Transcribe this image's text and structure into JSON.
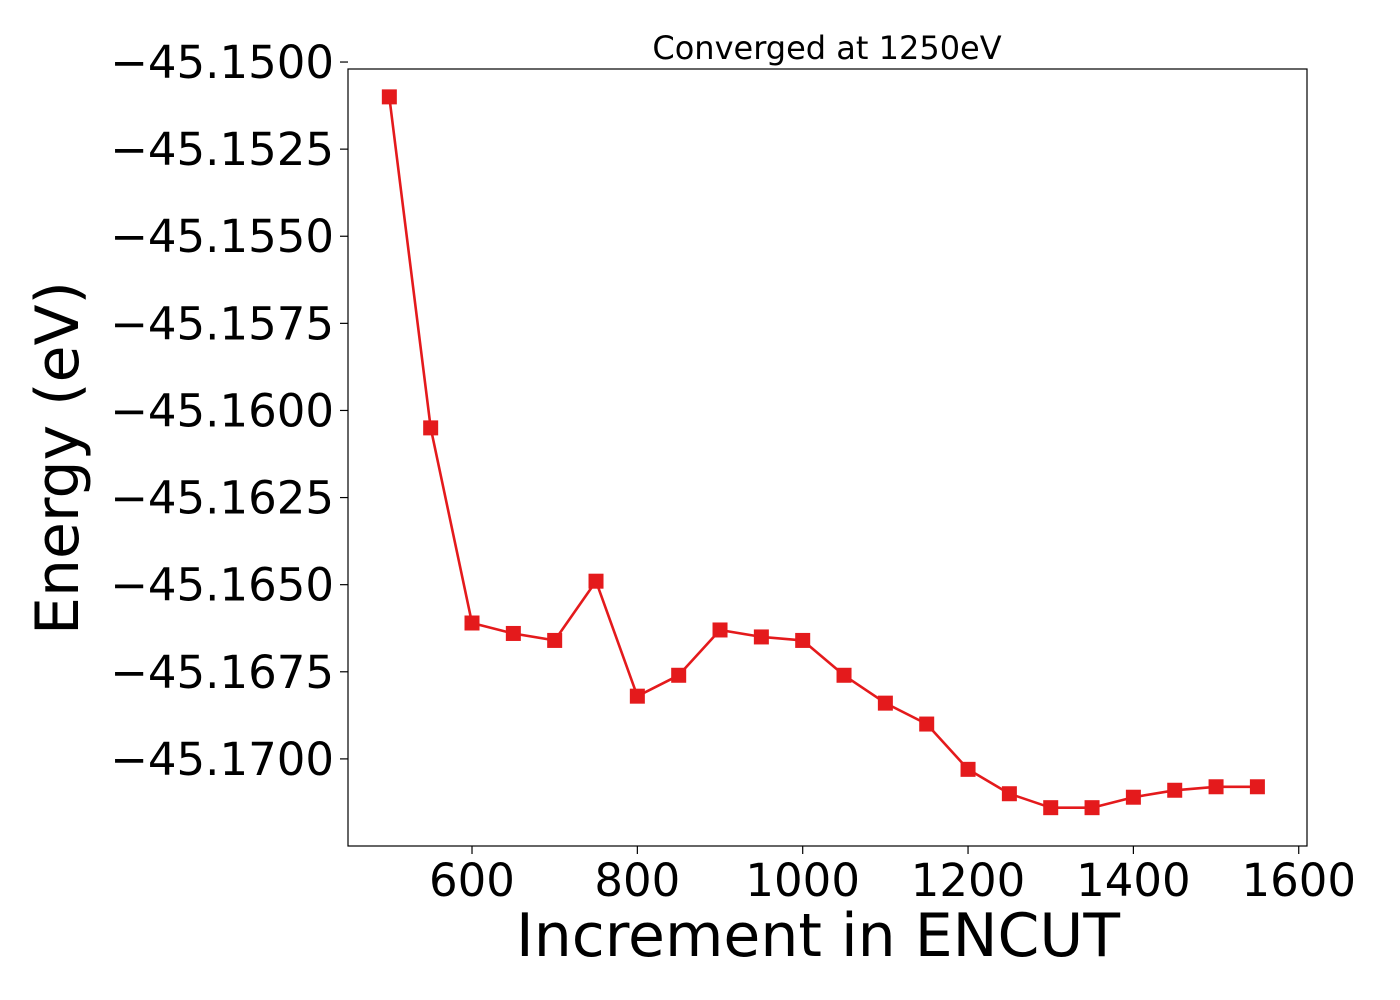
{
  "chart_data": {
    "type": "line",
    "title": "Converged at 1250eV",
    "xlabel": "Increment in ENCUT",
    "ylabel": "Energy (eV)",
    "xlim": [
      450,
      1610
    ],
    "ylim": [
      -45.1725,
      -45.1502
    ],
    "x_ticks": [
      600,
      800,
      1000,
      1200,
      1400,
      1600
    ],
    "y_ticks": [
      -45.15,
      -45.1525,
      -45.155,
      -45.1575,
      -45.16,
      -45.1625,
      -45.165,
      -45.1675,
      -45.17
    ],
    "x_tick_labels": [
      "600",
      "800",
      "1000",
      "1200",
      "1400",
      "1600"
    ],
    "y_tick_labels": [
      "−45.1500",
      "−45.1525",
      "−45.1550",
      "−45.1575",
      "−45.1600",
      "−45.1625",
      "−45.1650",
      "−45.1675",
      "−45.1700"
    ],
    "grid": false,
    "series": [
      {
        "color": "#e41a1c",
        "marker": "square",
        "x": [
          500,
          550,
          600,
          650,
          700,
          750,
          800,
          850,
          900,
          950,
          1000,
          1050,
          1100,
          1150,
          1200,
          1250,
          1300,
          1350,
          1400,
          1450,
          1500,
          1550
        ],
        "y": [
          -45.151,
          -45.1605,
          -45.1661,
          -45.1664,
          -45.1666,
          -45.1649,
          -45.1682,
          -45.1676,
          -45.1663,
          -45.1665,
          -45.1666,
          -45.1676,
          -45.1684,
          -45.169,
          -45.1703,
          -45.171,
          -45.1714,
          -45.1714,
          -45.1711,
          -45.1709,
          -45.1708,
          -45.1708
        ]
      }
    ]
  }
}
